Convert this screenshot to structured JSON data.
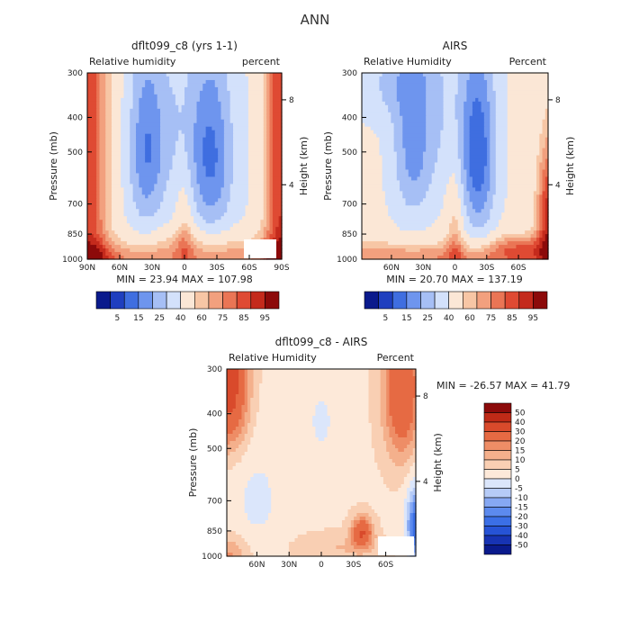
{
  "figure": {
    "title": "ANN"
  },
  "colors": {
    "abs_palette": [
      "#0a1a8c",
      "#1f3fbf",
      "#3f6ee0",
      "#6e95ee",
      "#a6bff5",
      "#d3e1fb",
      "#fbe7d6",
      "#f7c6a5",
      "#f2a07e",
      "#ea7555",
      "#df4a33",
      "#c42a1c",
      "#8c0a0a"
    ],
    "diff_palette": [
      "#0a1a8c",
      "#1733b3",
      "#2653d6",
      "#3b6fe6",
      "#5c8aee",
      "#86a8f3",
      "#b6cbf7",
      "#dbe6fb",
      "#fde9d9",
      "#f9cfb3",
      "#f4b08c",
      "#ee8d66",
      "#e66a43",
      "#d94a2b",
      "#bf2a17",
      "#8c0a0a"
    ]
  },
  "chart_data": [
    {
      "type": "heatmap",
      "title": "dflt099_c8 (yrs 1-1)",
      "subtitle_left": "Relative humidity",
      "subtitle_right": "percent",
      "ylabel": "Pressure (mb)",
      "right_label": "Height (km)",
      "x_ticks": [
        "90N",
        "60N",
        "30N",
        "0",
        "30S",
        "60S",
        "90S"
      ],
      "y_ticks": [
        "300",
        "400",
        "500",
        "700",
        "850",
        "1000"
      ],
      "right_ticks": [
        "8",
        "4"
      ],
      "stats": "MIN =  23.94   MAX = 107.98",
      "colorbar_labels": [
        "5",
        "15",
        "25",
        "40",
        "60",
        "75",
        "85",
        "95"
      ]
    },
    {
      "type": "heatmap",
      "title": "AIRS",
      "subtitle_left": "Relative Humidity",
      "subtitle_right": "Percent",
      "ylabel": "Pressure (mb)",
      "right_label": "Height (km)",
      "x_ticks": [
        "60N",
        "30N",
        "0",
        "30S",
        "60S"
      ],
      "y_ticks": [
        "300",
        "400",
        "500",
        "700",
        "850",
        "1000"
      ],
      "right_ticks": [
        "8",
        "4"
      ],
      "stats": "MIN =  20.70   MAX = 137.19",
      "colorbar_labels": [
        "5",
        "15",
        "25",
        "40",
        "60",
        "75",
        "85",
        "95"
      ]
    },
    {
      "type": "heatmap",
      "title": "dflt099_c8 - AIRS",
      "subtitle_left": "Relative Humidity",
      "subtitle_right": "Percent",
      "ylabel": "Pressure (mb)",
      "right_label": "Height (km)",
      "x_ticks": [
        "60N",
        "30N",
        "0",
        "30S",
        "60S"
      ],
      "y_ticks": [
        "300",
        "400",
        "500",
        "700",
        "850",
        "1000"
      ],
      "right_ticks": [
        "8",
        "4"
      ],
      "stats": "MIN = -26.57   MAX =  41.79",
      "colorbar_labels": [
        "50",
        "40",
        "30",
        "20",
        "15",
        "10",
        "5",
        "0",
        "-5",
        "-10",
        "-15",
        "-20",
        "-30",
        "-40",
        "-50"
      ]
    }
  ]
}
